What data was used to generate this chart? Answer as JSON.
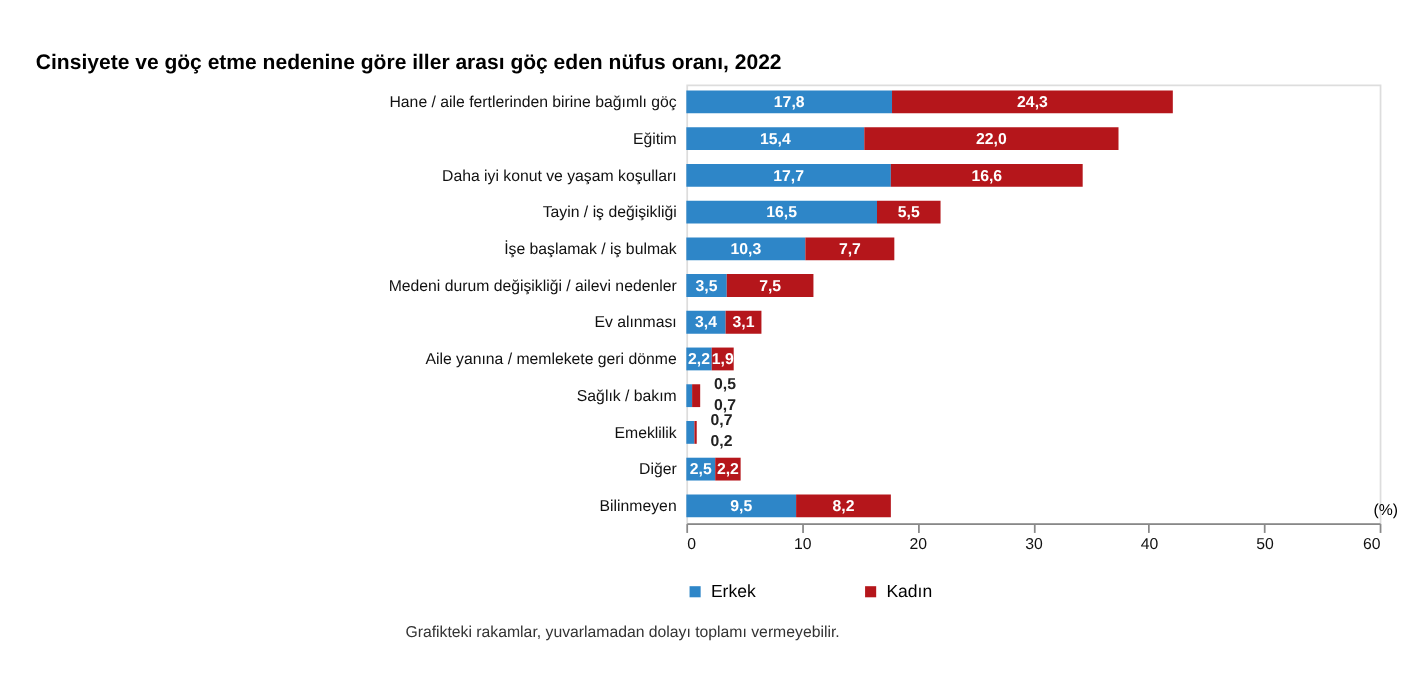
{
  "chart_data": {
    "type": "bar",
    "orientation": "horizontal",
    "stacked": true,
    "title": "Cinsiyete ve göç etme nedenine göre iller arası göç eden nüfus oranı, 2022",
    "categories": [
      "Hane / aile fertlerinden birine bağımlı göç",
      "Eğitim",
      "Daha iyi konut ve yaşam koşulları",
      "Tayin / iş değişikliği",
      "İşe başlamak / iş bulmak",
      "Medeni durum değişikliği / ailevi nedenler",
      "Ev alınması",
      "Aile yanına / memlekete geri dönme",
      "Sağlık / bakım",
      "Emeklilik",
      "Diğer",
      "Bilinmeyen"
    ],
    "series": [
      {
        "name": "Erkek",
        "color": "#2e86c8",
        "values": [
          17.8,
          15.4,
          17.7,
          16.5,
          10.3,
          3.5,
          3.4,
          2.2,
          0.5,
          0.7,
          2.5,
          9.5
        ],
        "value_labels": [
          "17,8",
          "15,4",
          "17,7",
          "16,5",
          "10,3",
          "3,5",
          "3,4",
          "2,2",
          "0,5",
          "0,7",
          "2,5",
          "9,5"
        ]
      },
      {
        "name": "Kadın",
        "color": "#b5161b",
        "values": [
          24.3,
          22.0,
          16.6,
          5.5,
          7.7,
          7.5,
          3.1,
          1.9,
          0.7,
          0.2,
          2.2,
          8.2
        ],
        "value_labels": [
          "24,3",
          "22,0",
          "16,6",
          "5,5",
          "7,7",
          "7,5",
          "3,1",
          "1,9",
          "0,7",
          "0,2",
          "2,2",
          "8,2"
        ]
      }
    ],
    "xlabel": "(%)",
    "xlim": [
      0,
      60
    ],
    "xticks": [
      0,
      10,
      20,
      30,
      40,
      50,
      60
    ],
    "grid": false,
    "legend": "bottom",
    "annotations": [
      "Grafikteki rakamlar, yuvarlamadan dolayı toplamı vermeyebilir."
    ]
  }
}
